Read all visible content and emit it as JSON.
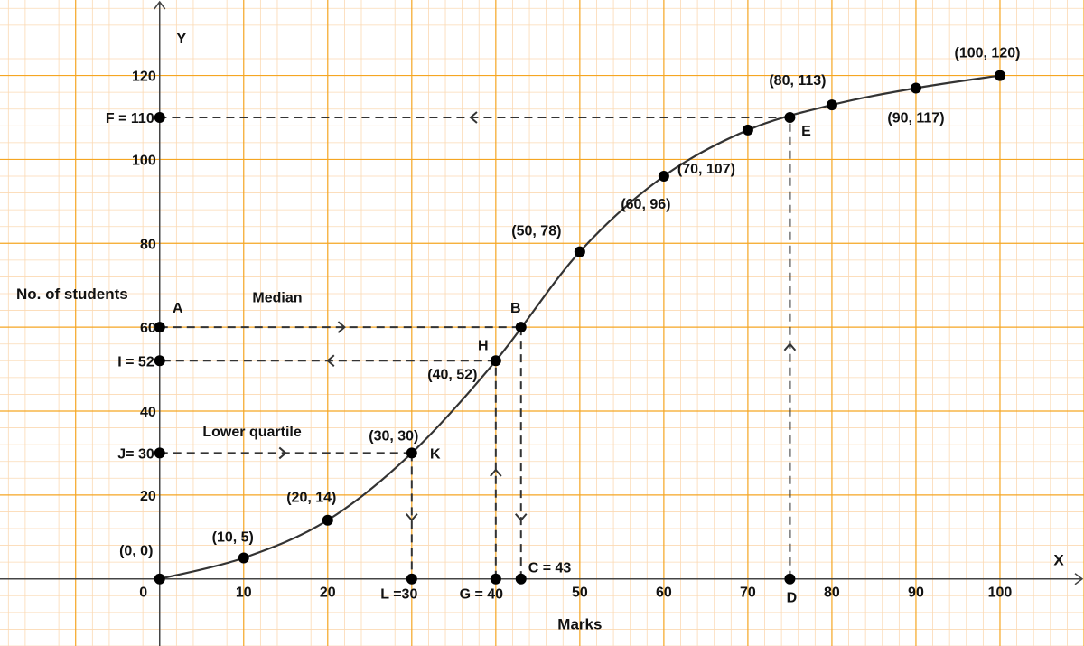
{
  "chart_data": {
    "type": "line",
    "title": "",
    "xlabel": "Marks",
    "ylabel": "No. of students",
    "x_axis_letter": "X",
    "y_axis_letter": "Y",
    "origin_label": "0",
    "xlim": [
      -19,
      110
    ],
    "ylim": [
      -16,
      138
    ],
    "grid": true,
    "x_ticks": [
      10,
      20,
      30,
      40,
      50,
      60,
      70,
      80,
      90,
      100
    ],
    "x_tick_labels": [
      "10",
      "20",
      "",
      "",
      "50",
      "60",
      "70",
      "80",
      "90",
      "100"
    ],
    "y_ticks": [
      20,
      40,
      60,
      80,
      100,
      120
    ],
    "y_tick_labels": [
      "20",
      "40",
      "60",
      "80",
      "100",
      "120"
    ],
    "series": [
      {
        "name": "",
        "x": [
          0,
          10,
          20,
          30,
          40,
          50,
          60,
          70,
          80,
          90,
          100
        ],
        "y": [
          0,
          5,
          14,
          30,
          52,
          78,
          96,
          107,
          113,
          117,
          120
        ],
        "point_labels": [
          "(0, 0)",
          "(10, 5)",
          "(20, 14)",
          "(30, 30)",
          "(40, 52)",
          "(50, 78)",
          "(60, 96)",
          "(70, 107)",
          "(80, 113)",
          "(90, 117)",
          "(100, 120)"
        ]
      }
    ],
    "marked_points": [
      {
        "label": "A",
        "x": 0,
        "y": 60
      },
      {
        "label": "B",
        "x": 43,
        "y": 60
      },
      {
        "label": "C = 43",
        "x": 43,
        "y": 0
      },
      {
        "label": "D",
        "x": 75,
        "y": 0
      },
      {
        "label": "E",
        "x": 75,
        "y": 110
      },
      {
        "label": "F = 110",
        "x": 0,
        "y": 110
      },
      {
        "label": "G = 40",
        "x": 40,
        "y": 0
      },
      {
        "label": "H",
        "x": 40,
        "y": 52
      },
      {
        "label": "I = 52",
        "x": 0,
        "y": 52
      },
      {
        "label": "J= 30",
        "x": 0,
        "y": 30
      },
      {
        "label": "K",
        "x": 30,
        "y": 30
      },
      {
        "label": "L =30",
        "x": 30,
        "y": 0
      }
    ],
    "guide_lines": [
      {
        "from": [
          0,
          60
        ],
        "to": [
          43,
          60
        ],
        "arrow_at": [
          22,
          60
        ],
        "direction": "right"
      },
      {
        "from": [
          43,
          60
        ],
        "to": [
          43,
          0
        ],
        "arrow_at": [
          43,
          14
        ],
        "direction": "down"
      },
      {
        "from": [
          40,
          0
        ],
        "to": [
          40,
          52
        ],
        "arrow_at": [
          40,
          26
        ],
        "direction": "up"
      },
      {
        "from": [
          40,
          52
        ],
        "to": [
          0,
          52
        ],
        "arrow_at": [
          20,
          52
        ],
        "direction": "left"
      },
      {
        "from": [
          0,
          30
        ],
        "to": [
          30,
          30
        ],
        "arrow_at": [
          15,
          30
        ],
        "direction": "right"
      },
      {
        "from": [
          30,
          30
        ],
        "to": [
          30,
          0
        ],
        "arrow_at": [
          30,
          14
        ],
        "direction": "down"
      },
      {
        "from": [
          75,
          0
        ],
        "to": [
          75,
          110
        ],
        "arrow_at": [
          75,
          56
        ],
        "direction": "up"
      },
      {
        "from": [
          75,
          110
        ],
        "to": [
          0,
          110
        ],
        "arrow_at": [
          37,
          110
        ],
        "direction": "left"
      }
    ],
    "annotations": [
      {
        "text": "Median",
        "x": 14,
        "y": 66
      },
      {
        "text": "Lower quartile",
        "x": 11,
        "y": 34
      }
    ],
    "colors": {
      "major_grid": "#f5a623",
      "minor_grid": "#fbd9b3",
      "curve": "#333333",
      "axis": "#444444",
      "point": "#000000"
    }
  }
}
